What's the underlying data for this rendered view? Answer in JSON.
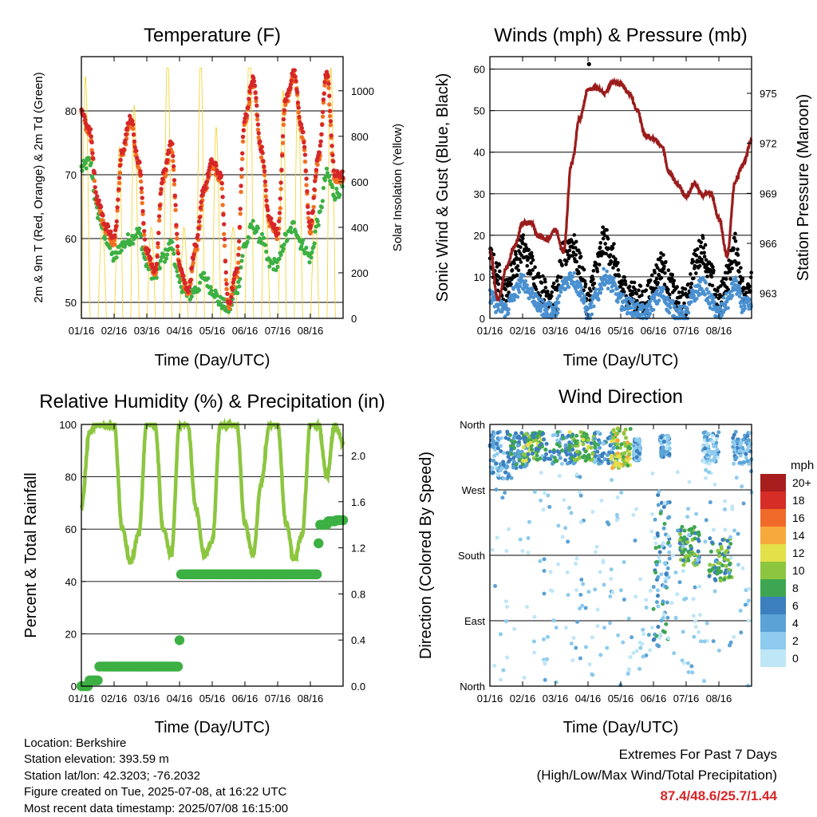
{
  "x_tick_labels": [
    "01/16",
    "02/16",
    "03/16",
    "04/16",
    "05/16",
    "06/16",
    "07/16",
    "08/16"
  ],
  "x_axis_label": "Time (Day/UTC)",
  "panels": {
    "temperature": {
      "title": "Temperature (F)",
      "ylabel_left": "2m & 9m T (Red, Orange) & 2m Td (Green)",
      "ylabel_right": "Solar Insolation (Yellow)",
      "left_ticks": [
        "50",
        "60",
        "70",
        "80"
      ],
      "right_ticks": [
        "0",
        "200",
        "400",
        "600",
        "800",
        "1000"
      ]
    },
    "winds": {
      "title": "Winds (mph) & Pressure (mb)",
      "ylabel_left": "Sonic Wind & Gust (Blue, Black)",
      "ylabel_right": "Station Pressure (Maroon)",
      "left_ticks": [
        "0",
        "10",
        "20",
        "30",
        "40",
        "50",
        "60"
      ],
      "right_ticks": [
        "963",
        "966",
        "969",
        "972",
        "975"
      ]
    },
    "humidity": {
      "title": "Relative Humidity (%) & Precipitation (in)",
      "ylabel_left": "Percent & Total Rainfall",
      "left_ticks": [
        "0",
        "20",
        "40",
        "60",
        "80",
        "100"
      ],
      "right_ticks": [
        "0.0",
        "0.4",
        "0.8",
        "1.2",
        "1.6",
        "2.0"
      ]
    },
    "direction": {
      "title": "Wind Direction",
      "ylabel_left": "Direction (Colored By Speed)",
      "left_ticks": [
        "North",
        "East",
        "South",
        "West",
        "North"
      ],
      "colorbar_title": "mph",
      "colorbar_labels": [
        "0",
        "2",
        "4",
        "6",
        "8",
        "10",
        "12",
        "14",
        "16",
        "18",
        "20+"
      ],
      "colorbar_colors": [
        "#bfe6f7",
        "#8ecbee",
        "#5ba3d6",
        "#3b7fbe",
        "#3ea652",
        "#8cc63f",
        "#e4e04a",
        "#f8a93b",
        "#f06a2a",
        "#d62d26",
        "#a81d1d"
      ]
    }
  },
  "colors": {
    "temp_2m": "#d62728",
    "temp_9m": "#f37021",
    "dewpoint": "#3cb043",
    "solar": "#f5d43a",
    "wind": "#4a90d0",
    "gust": "#000000",
    "pressure": "#9b1c1c",
    "rh": "#8cc63f",
    "precip": "#3cb043"
  },
  "info": {
    "location": "Location: Berkshire",
    "elevation": "Station elevation: 393.59 m",
    "latlon": "Station lat/lon: 42.3203; -76.2032",
    "created": "Figure created on Tue, 2025-07-08, at 16:22 UTC",
    "recent": "Most recent data timestamp: 2025/07/08 16:15:00"
  },
  "extremes": {
    "title": "Extremes For Past 7 Days",
    "subtitle": "(High/Low/Max Wind/Total Precipitation)",
    "values": "87.4/48.6/25.7/1.44"
  },
  "chart_data": [
    {
      "type": "line",
      "title": "Temperature (F)",
      "xlabel": "Time (Day/UTC)",
      "ylabel": "2m & 9m T (Red, Orange) & 2m Td (Green)",
      "y2label": "Solar Insolation (Yellow)",
      "x": [
        0,
        0.25,
        0.5,
        0.75,
        1,
        1.25,
        1.5,
        1.75,
        2,
        2.25,
        2.5,
        2.75,
        3,
        3.25,
        3.5,
        3.75,
        4,
        4.25,
        4.5,
        4.75,
        5,
        5.25,
        5.5,
        5.75,
        6,
        6.25,
        6.5,
        6.75,
        7,
        7.25,
        7.5,
        7.75,
        8
      ],
      "ylim": [
        47.5,
        88.5
      ],
      "y2lim": [
        0,
        1150
      ],
      "series": [
        {
          "name": "2m T",
          "axis": "left",
          "values": [
            80,
            77,
            66,
            62,
            60,
            74,
            79,
            72,
            58,
            55,
            70,
            75,
            56,
            52,
            59,
            68,
            72,
            70,
            50,
            55,
            79,
            85,
            74,
            63,
            61,
            82,
            86,
            77,
            62,
            73,
            86,
            70,
            70
          ]
        },
        {
          "name": "2m Td",
          "axis": "left",
          "values": [
            71,
            72,
            64,
            60,
            57,
            59,
            60,
            61,
            56,
            54,
            57,
            59,
            53,
            51,
            52,
            54,
            52,
            50,
            49,
            52,
            59,
            62,
            60,
            56,
            56,
            60,
            62,
            59,
            57,
            63,
            70,
            67,
            68
          ]
        },
        {
          "name": "Solar",
          "axis": "right",
          "values": [
            1000,
            500,
            0,
            0,
            0,
            600,
            900,
            300,
            0,
            0,
            900,
            800,
            0,
            0,
            600,
            1000,
            700,
            300,
            0,
            0,
            900,
            1000,
            500,
            0,
            0,
            1000,
            1000,
            400,
            0,
            100,
            1000,
            600,
            300
          ]
        }
      ]
    },
    {
      "type": "line",
      "title": "Winds (mph) & Pressure (mb)",
      "xlabel": "Time (Day/UTC)",
      "ylabel": "Sonic Wind & Gust (Blue, Black)",
      "y2label": "Station Pressure (Maroon)",
      "x": [
        0,
        0.25,
        0.5,
        0.75,
        1,
        1.25,
        1.5,
        1.75,
        2,
        2.25,
        2.5,
        2.75,
        3,
        3.25,
        3.5,
        3.75,
        4,
        4.25,
        4.5,
        4.75,
        5,
        5.25,
        5.5,
        5.75,
        6,
        6.25,
        6.5,
        6.75,
        7,
        7.25,
        7.5,
        7.75,
        8
      ],
      "ylim": [
        0,
        63
      ],
      "y2lim": [
        961.5,
        977.2
      ],
      "series": [
        {
          "name": "Sonic Wind",
          "axis": "left",
          "values": [
            5,
            3,
            2,
            6,
            9,
            6,
            3,
            2,
            2,
            8,
            10,
            7,
            1,
            5,
            10,
            8,
            4,
            3,
            2,
            1,
            4,
            6,
            3,
            1,
            1,
            6,
            8,
            4,
            1,
            4,
            8,
            3,
            3
          ]
        },
        {
          "name": "Gust",
          "axis": "left",
          "values": [
            14,
            10,
            6,
            13,
            17,
            13,
            8,
            6,
            5,
            15,
            18,
            13,
            4,
            12,
            19,
            15,
            8,
            6,
            5,
            4,
            9,
            13,
            8,
            4,
            4,
            13,
            17,
            10,
            4,
            10,
            17,
            7,
            8
          ]
        },
        {
          "name": "Station Pressure",
          "axis": "right",
          "values": [
            965.5,
            962.6,
            964.5,
            965.8,
            967.2,
            967.2,
            966.4,
            966.2,
            966.8,
            965.5,
            970.8,
            973.5,
            975.2,
            975.3,
            975.0,
            975.7,
            975.6,
            975.0,
            974.0,
            972.5,
            972.3,
            971.8,
            970.2,
            969.5,
            968.8,
            969.6,
            968.9,
            969.0,
            967.5,
            965.3,
            969.7,
            970.8,
            972.2
          ]
        },
        {
          "name": "Gust outlier",
          "axis": "left",
          "points": [
            [
              3.03,
              61.2
            ]
          ]
        }
      ]
    },
    {
      "type": "line",
      "title": "Relative Humidity (%) & Precipitation (in)",
      "xlabel": "Time (Day/UTC)",
      "ylabel": "Percent & Total Rainfall",
      "x": [
        0,
        0.25,
        0.5,
        0.75,
        1,
        1.25,
        1.5,
        1.75,
        2,
        2.25,
        2.5,
        2.75,
        3,
        3.25,
        3.5,
        3.75,
        4,
        4.25,
        4.5,
        4.75,
        5,
        5.25,
        5.5,
        5.75,
        6,
        6.25,
        6.5,
        6.75,
        7,
        7.25,
        7.5,
        7.75,
        8
      ],
      "ylim": [
        0,
        100
      ],
      "y2lim": [
        0.0,
        2.27
      ],
      "series": [
        {
          "name": "Relative Humidity",
          "axis": "left",
          "values": [
            68,
            97,
            100,
            100,
            100,
            60,
            47,
            58,
            100,
            100,
            60,
            50,
            100,
            100,
            68,
            50,
            55,
            100,
            100,
            100,
            62,
            50,
            78,
            100,
            100,
            63,
            48,
            58,
            100,
            100,
            80,
            100,
            93
          ]
        },
        {
          "name": "Total Precipitation",
          "axis": "right",
          "values": [
            0,
            0.05,
            0.17,
            0.17,
            0.17,
            0.17,
            0.17,
            0.17,
            0.17,
            0.17,
            0.17,
            0.17,
            0.97,
            0.97,
            0.97,
            0.97,
            0.97,
            0.97,
            0.97,
            0.97,
            0.97,
            0.97,
            0.97,
            0.97,
            0.97,
            0.97,
            0.97,
            0.97,
            0.97,
            1.4,
            1.43,
            1.44,
            1.44
          ]
        }
      ]
    },
    {
      "type": "scatter",
      "title": "Wind Direction",
      "xlabel": "Time (Day/UTC)",
      "ylabel": "Direction (Colored By Speed)",
      "y_categories": [
        "North",
        "East",
        "South",
        "West",
        "North"
      ],
      "ylim": [
        0,
        360
      ],
      "colorbar": {
        "title": "mph",
        "range": [
          0,
          20
        ]
      },
      "clusters": [
        {
          "x": [
            0.0,
            0.6
          ],
          "y": [
            285,
            350
          ],
          "speed": 4
        },
        {
          "x": [
            0.6,
            1.2
          ],
          "y": [
            300,
            350
          ],
          "speed": 6
        },
        {
          "x": [
            1.0,
            1.6
          ],
          "y": [
            310,
            350
          ],
          "speed": 9
        },
        {
          "x": [
            1.6,
            2.6
          ],
          "y": [
            305,
            350
          ],
          "speed": 5
        },
        {
          "x": [
            2.4,
            3.2
          ],
          "y": [
            310,
            350
          ],
          "speed": 9
        },
        {
          "x": [
            3.2,
            3.9
          ],
          "y": [
            305,
            350
          ],
          "speed": 5
        },
        {
          "x": [
            3.7,
            4.3
          ],
          "y": [
            300,
            355
          ],
          "speed": 11
        },
        {
          "x": [
            4.4,
            4.6
          ],
          "y": [
            310,
            340
          ],
          "speed": 3
        },
        {
          "x": [
            5.0,
            5.5
          ],
          "y": [
            50,
            270
          ],
          "speed": 5
        },
        {
          "x": [
            5.2,
            5.5
          ],
          "y": [
            315,
            345
          ],
          "speed": 3
        },
        {
          "x": [
            5.8,
            6.4
          ],
          "y": [
            165,
            220
          ],
          "speed": 8
        },
        {
          "x": [
            6.5,
            7.0
          ],
          "y": [
            305,
            350
          ],
          "speed": 3
        },
        {
          "x": [
            6.7,
            7.4
          ],
          "y": [
            145,
            205
          ],
          "speed": 8
        },
        {
          "x": [
            7.4,
            8.0
          ],
          "y": [
            305,
            350
          ],
          "speed": 4
        },
        {
          "x": [
            0.0,
            8.0
          ],
          "y": [
            0,
            300
          ],
          "speed": 1
        }
      ]
    }
  ]
}
